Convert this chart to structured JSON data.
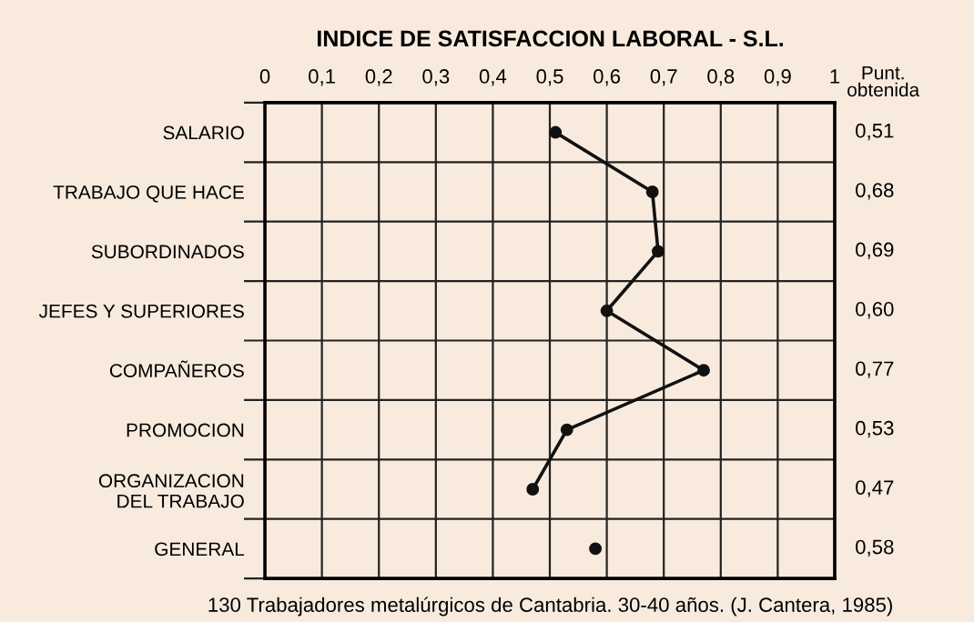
{
  "chart_data": {
    "type": "line",
    "orientation": "horizontal",
    "title": "INDICE DE SATISFACCION LABORAL - S.L.",
    "categories": [
      "SALARIO",
      "TRABAJO QUE HACE",
      "SUBORDINADOS",
      "JEFES Y SUPERIORES",
      "COMPAÑEROS",
      "PROMOCION",
      "ORGANIZACION\nDEL TRABAJO",
      "GENERAL"
    ],
    "series": [
      {
        "color": "#111111",
        "values": [
          0.51,
          0.68,
          0.69,
          0.6,
          0.77,
          0.53,
          0.47,
          null
        ]
      },
      {
        "type": "scatter",
        "color": "#111111",
        "values": [
          null,
          null,
          null,
          null,
          null,
          null,
          null,
          0.58
        ]
      }
    ],
    "value_labels": [
      "0,51",
      "0,68",
      "0,69",
      "0,60",
      "0,77",
      "0,53",
      "0,47",
      "0,58"
    ],
    "xlim": [
      0,
      1
    ],
    "xticks": [
      0,
      {
        "value": 0.1,
        "label": "0,1"
      },
      {
        "value": 0.2,
        "label": "0,2"
      },
      {
        "value": 0.3,
        "label": "0,3"
      },
      {
        "value": 0.4,
        "label": "0,4"
      },
      {
        "value": 0.5,
        "label": "0,5"
      },
      {
        "value": 0.6,
        "label": "0,6"
      },
      {
        "value": 0.7,
        "label": "0,7"
      },
      {
        "value": 0.8,
        "label": "0,8"
      },
      {
        "value": 0.9,
        "label": "0,9"
      },
      1
    ],
    "grid": true,
    "marker": "circle",
    "line_style": "solid",
    "annotations": [
      "Punt.\nobtenida",
      "130 Trabajadores metalúrgicos de Cantabria. 30-40 años. (J. Cantera, 1985)"
    ]
  }
}
